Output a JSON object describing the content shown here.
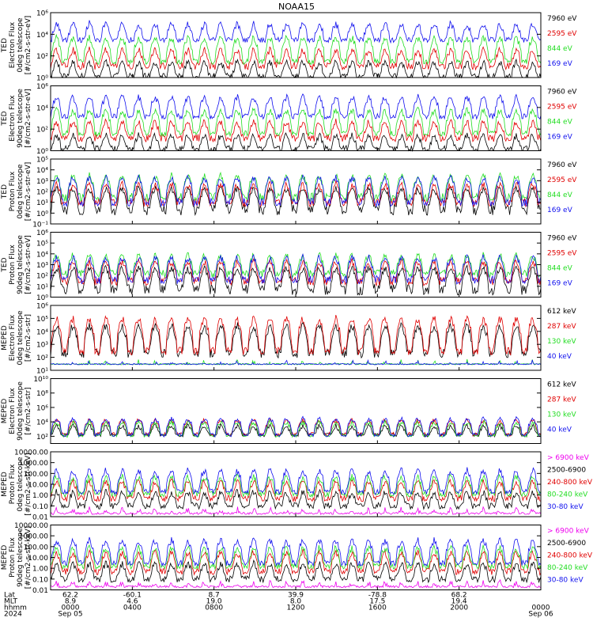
{
  "title": "NOAA15",
  "colors": {
    "black": "#000000",
    "red": "#e00000",
    "green": "#22dd22",
    "blue": "#1010ee",
    "magenta": "#ee00ee"
  },
  "chart_data": [
    {
      "type": "line",
      "panel": "ted-electron-0deg",
      "ylabel": [
        "TED",
        "Electron Flux",
        "0deg telescope",
        "[#/cm2-s-str-eV]"
      ],
      "scale": "log",
      "ylim": [
        1,
        1000000
      ],
      "yticks": [
        {
          "v": 1,
          "t": "10⁰"
        },
        {
          "v": 100,
          "t": "10²"
        },
        {
          "v": 10000,
          "t": "10⁴"
        },
        {
          "v": 1000000,
          "t": "10⁶"
        }
      ],
      "series": [
        {
          "name": "7960 eV",
          "color": "black",
          "base": 1.3,
          "spike": 30,
          "noise": 0.6
        },
        {
          "name": "2595 eV",
          "color": "red",
          "base": 12,
          "spike": 400,
          "noise": 0.7
        },
        {
          "name": "844 eV",
          "color": "green",
          "base": 30,
          "spike": 5000,
          "noise": 0.5
        },
        {
          "name": "169 eV",
          "color": "blue",
          "base": 3000,
          "spike": 100000,
          "noise": 0.5
        }
      ]
    },
    {
      "type": "line",
      "panel": "ted-electron-90deg",
      "ylabel": [
        "TED",
        "Electron Flux",
        "90deg telescope",
        "[#/cm2-s-str-eV]"
      ],
      "scale": "log",
      "ylim": [
        1,
        1000000
      ],
      "yticks": [
        {
          "v": 1,
          "t": "10⁰"
        },
        {
          "v": 100,
          "t": "10²"
        },
        {
          "v": 10000,
          "t": "10⁴"
        },
        {
          "v": 1000000,
          "t": "10⁶"
        }
      ],
      "series": [
        {
          "name": "7960 eV",
          "color": "black",
          "base": 1.5,
          "spike": 30,
          "noise": 0.6
        },
        {
          "name": "2595 eV",
          "color": "red",
          "base": 15,
          "spike": 500,
          "noise": 0.7
        },
        {
          "name": "844 eV",
          "color": "green",
          "base": 40,
          "spike": 6000,
          "noise": 0.5
        },
        {
          "name": "169 eV",
          "color": "blue",
          "base": 1500,
          "spike": 100000,
          "noise": 0.5
        }
      ]
    },
    {
      "type": "line",
      "panel": "ted-proton-0deg",
      "ylabel": [
        "TED",
        "Proton Flux",
        "0deg telescope",
        "[#/cm2-s-str-eV]"
      ],
      "scale": "log",
      "ylim": [
        0.1,
        100000
      ],
      "yticks": [
        {
          "v": 0.1,
          "t": "10⁻¹"
        },
        {
          "v": 1,
          "t": "10⁰"
        },
        {
          "v": 10,
          "t": "10¹"
        },
        {
          "v": 100,
          "t": "10²"
        },
        {
          "v": 1000,
          "t": "10³"
        },
        {
          "v": 10000,
          "t": "10⁴"
        },
        {
          "v": 100000,
          "t": "10⁵"
        }
      ],
      "series": [
        {
          "name": "7960 eV",
          "color": "black",
          "base": 2,
          "spike": 200,
          "noise": 1.0
        },
        {
          "name": "2595 eV",
          "color": "red",
          "base": 10,
          "spike": 500,
          "noise": 0.8
        },
        {
          "name": "844 eV",
          "color": "green",
          "base": 30,
          "spike": 3000,
          "noise": 0.8
        },
        {
          "name": "169 eV",
          "color": "blue",
          "base": 10,
          "spike": 2000,
          "noise": 0.8
        }
      ]
    },
    {
      "type": "line",
      "panel": "ted-proton-90deg",
      "ylabel": [
        "TED",
        "Proton Flux",
        "90deg telescope",
        "[#/cm2-s-str-eV]"
      ],
      "scale": "log",
      "ylim": [
        1,
        1000000
      ],
      "yticks": [
        {
          "v": 1,
          "t": "10⁰"
        },
        {
          "v": 10,
          "t": "10¹"
        },
        {
          "v": 100,
          "t": "10²"
        },
        {
          "v": 1000,
          "t": "10³"
        },
        {
          "v": 10000,
          "t": "10⁴"
        },
        {
          "v": 100000,
          "t": "10⁵"
        },
        {
          "v": 1000000,
          "t": "10⁶"
        }
      ],
      "series": [
        {
          "name": "7960 eV",
          "color": "black",
          "base": 5,
          "spike": 500,
          "noise": 1.0
        },
        {
          "name": "2595 eV",
          "color": "red",
          "base": 30,
          "spike": 2000,
          "noise": 0.8
        },
        {
          "name": "844 eV",
          "color": "green",
          "base": 150,
          "spike": 8000,
          "noise": 0.7
        },
        {
          "name": "169 eV",
          "color": "blue",
          "base": 40,
          "spike": 5000,
          "noise": 0.8
        }
      ]
    },
    {
      "type": "line",
      "panel": "meped-electron-0deg",
      "ylabel": [
        "MEPED",
        "Electron Flux",
        "0deg telescope",
        "[#/cm2-s-str]"
      ],
      "scale": "log",
      "ylim": [
        10,
        1000000
      ],
      "yticks": [
        {
          "v": 10,
          "t": "10¹"
        },
        {
          "v": 100,
          "t": "10²"
        },
        {
          "v": 1000,
          "t": "10³"
        },
        {
          "v": 10000,
          "t": "10⁴"
        },
        {
          "v": 100000,
          "t": "10⁵"
        },
        {
          "v": 1000000,
          "t": "10⁶"
        }
      ],
      "series": [
        {
          "name": "612 keV",
          "color": "black",
          "base": 200,
          "spike": 30000,
          "noise": 0.7
        },
        {
          "name": "287 keV",
          "color": "red",
          "base": 300,
          "spike": 100000,
          "noise": 0.6
        },
        {
          "name": "130 keV",
          "color": "green",
          "base": 30,
          "spike": 40,
          "noise": 0.1
        },
        {
          "name": "40 keV",
          "color": "blue",
          "base": 30,
          "spike": 40,
          "noise": 0.1
        }
      ]
    },
    {
      "type": "line",
      "panel": "meped-electron-90deg",
      "ylabel": [
        "MEPED",
        "Electron Flux",
        "90deg telescope",
        "[#/cm2-s-str]"
      ],
      "scale": "log",
      "ylim": [
        10,
        10000000000
      ],
      "yticks": [
        {
          "v": 100,
          "t": "10²"
        },
        {
          "v": 10000,
          "t": "10⁴"
        },
        {
          "v": 1000000,
          "t": "10⁶"
        },
        {
          "v": 100000000,
          "t": "10⁸"
        },
        {
          "v": 10000000000,
          "t": "10¹⁰"
        }
      ],
      "series": [
        {
          "name": "612 keV",
          "color": "black",
          "base": 150,
          "spike": 3000,
          "noise": 0.5
        },
        {
          "name": "287 keV",
          "color": "red",
          "base": 200,
          "spike": 20000,
          "noise": 0.5
        },
        {
          "name": "130 keV",
          "color": "green",
          "base": 120,
          "spike": 10000,
          "noise": 0.4
        },
        {
          "name": "40 keV",
          "color": "blue",
          "base": 150,
          "spike": 30000,
          "noise": 0.5
        }
      ]
    },
    {
      "type": "line",
      "panel": "meped-proton-0deg",
      "ylabel": [
        "MEPED",
        "Proton Flux",
        "0deg telescope",
        "[#/cm2-s-str-keV]"
      ],
      "scale": "log",
      "ylim": [
        0.01,
        10000
      ],
      "yticks": [
        {
          "v": 0.01,
          "t": "0.01"
        },
        {
          "v": 0.1,
          "t": "0.10"
        },
        {
          "v": 1,
          "t": "1.00"
        },
        {
          "v": 10,
          "t": "10.00"
        },
        {
          "v": 100,
          "t": "100.00"
        },
        {
          "v": 1000,
          "t": "1000.00"
        },
        {
          "v": 10000,
          "t": "10000.00"
        }
      ],
      "series": [
        {
          "name": "> 6900 keV",
          "color": "magenta",
          "base": 0.02,
          "spike": 0.05,
          "noise": 0.2
        },
        {
          "name": "2500-6900",
          "color": "black",
          "base": 0.1,
          "spike": 2,
          "noise": 0.6
        },
        {
          "name": "240-800 keV",
          "color": "red",
          "base": 0.5,
          "spike": 20,
          "noise": 0.6
        },
        {
          "name": "80-240 keV",
          "color": "green",
          "base": 1.2,
          "spike": 50,
          "noise": 0.5
        },
        {
          "name": "30-80 keV",
          "color": "blue",
          "base": 2,
          "spike": 200,
          "noise": 0.5
        }
      ]
    },
    {
      "type": "line",
      "panel": "meped-proton-90deg",
      "ylabel": [
        "MEPED",
        "Proton Flux",
        "90deg telescope",
        "[#/cm2-s-str-keV]"
      ],
      "scale": "log",
      "ylim": [
        0.01,
        10000
      ],
      "yticks": [
        {
          "v": 0.01,
          "t": "0.01"
        },
        {
          "v": 0.1,
          "t": "0.10"
        },
        {
          "v": 1,
          "t": "1.00"
        },
        {
          "v": 10,
          "t": "10.00"
        },
        {
          "v": 100,
          "t": "100.00"
        },
        {
          "v": 1000,
          "t": "1000.00"
        },
        {
          "v": 10000,
          "t": "10000.00"
        }
      ],
      "series": [
        {
          "name": "> 6900 keV",
          "color": "magenta",
          "base": 0.02,
          "spike": 0.05,
          "noise": 0.2
        },
        {
          "name": "2500-6900",
          "color": "black",
          "base": 0.1,
          "spike": 3,
          "noise": 0.6
        },
        {
          "name": "240-800 keV",
          "color": "red",
          "base": 0.5,
          "spike": 30,
          "noise": 0.6
        },
        {
          "name": "80-240 keV",
          "color": "green",
          "base": 1.5,
          "spike": 80,
          "noise": 0.5
        },
        {
          "name": "30-80 keV",
          "color": "blue",
          "base": 3,
          "spike": 400,
          "noise": 0.5
        }
      ]
    }
  ],
  "xaxis": {
    "row_labels": [
      "Lat",
      "MLT",
      "hhmm",
      "2024"
    ],
    "ticks": [
      {
        "frac": 0.0,
        "lat": "62.2",
        "mlt": "8.9",
        "hhmm": "0000",
        "date": "Sep 05"
      },
      {
        "frac": 0.1667,
        "lat": "-60.1",
        "mlt": "4.6",
        "hhmm": "0400",
        "date": ""
      },
      {
        "frac": 0.3333,
        "lat": "8.7",
        "mlt": "19.0",
        "hhmm": "0800",
        "date": ""
      },
      {
        "frac": 0.5,
        "lat": "39.9",
        "mlt": "8.0",
        "hhmm": "1200",
        "date": ""
      },
      {
        "frac": 0.6667,
        "lat": "-78.8",
        "mlt": "17.5",
        "hhmm": "1600",
        "date": ""
      },
      {
        "frac": 0.8333,
        "lat": "68.2",
        "mlt": "19.4",
        "hhmm": "2000",
        "date": ""
      },
      {
        "frac": 1.0,
        "lat": "",
        "mlt": "",
        "hhmm": "0000",
        "date": "Sep 06"
      }
    ]
  }
}
